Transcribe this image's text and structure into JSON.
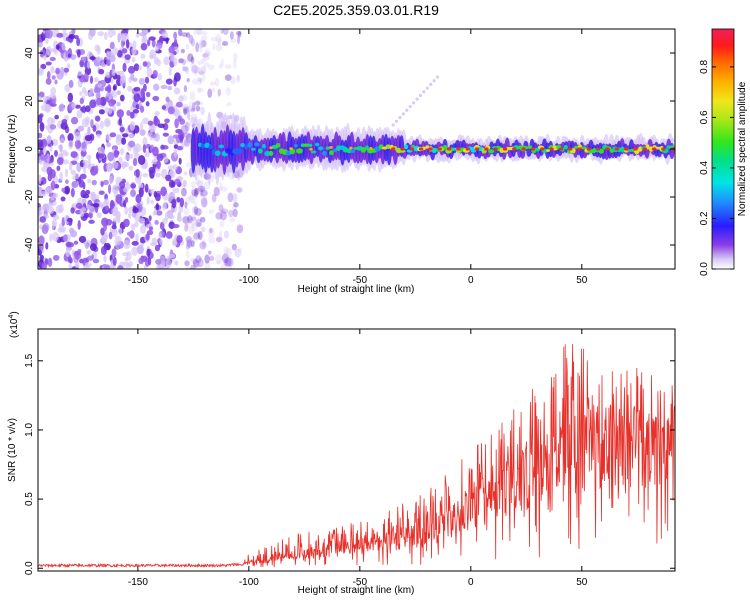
{
  "title": "C2E5.2025.359.03.01.R19",
  "chart_data": [
    {
      "type": "heatmap",
      "xlabel": "Height of straight line (km)",
      "ylabel": "Frequency (Hz)",
      "xlim": [
        -195,
        92
      ],
      "ylim": [
        -50,
        50
      ],
      "xticks": [
        -150,
        -100,
        -50,
        0,
        50
      ],
      "yticks": [
        -40,
        -20,
        0,
        20,
        40
      ],
      "colorbar": {
        "label": "Normalized spectral amplitude",
        "range": [
          0.0,
          0.95
        ],
        "ticks": [
          "0.0",
          "0.2",
          "0.4",
          "0.6",
          "0.8"
        ],
        "tick_values": [
          0.0,
          0.2,
          0.4,
          0.6,
          0.8
        ]
      },
      "noise_region_x": [
        -195,
        -115
      ],
      "signal_band_x": [
        -125,
        92
      ],
      "signal_center_freq_hz": 0,
      "faint_track": {
        "x": [
          -35,
          -15
        ],
        "y": [
          10,
          30
        ]
      }
    },
    {
      "type": "line",
      "xlabel": "Height of straight line (km)",
      "ylabel": "SNR (10 * v/v)",
      "scale_label": "(x10",
      "scale_exponent": "4",
      "xlim": [
        -195,
        92
      ],
      "ylim": [
        -0.02,
        1.73
      ],
      "xticks": [
        -150,
        -100,
        -50,
        0,
        50
      ],
      "yticks": [
        0.0,
        0.5,
        1.0,
        1.5
      ],
      "ytick_labels": [
        "0.0",
        "0.5",
        "1.0",
        "1.5"
      ],
      "line_color": "#e8302a",
      "envelope": {
        "x": [
          -195,
          -110,
          -100,
          -80,
          -60,
          -40,
          -20,
          -5,
          10,
          30,
          45,
          60,
          75,
          92
        ],
        "y_max": [
          0.03,
          0.04,
          0.1,
          0.25,
          0.3,
          0.4,
          0.55,
          0.8,
          1.0,
          1.35,
          1.7,
          1.45,
          1.45,
          1.4
        ],
        "y_mid": [
          0.02,
          0.02,
          0.04,
          0.1,
          0.13,
          0.2,
          0.25,
          0.4,
          0.55,
          0.7,
          0.9,
          0.95,
          0.95,
          0.9
        ]
      }
    }
  ],
  "colors": {
    "line": "#e8302a",
    "noise": "#7a3fe0",
    "signal_peak": "#e02a2a"
  }
}
